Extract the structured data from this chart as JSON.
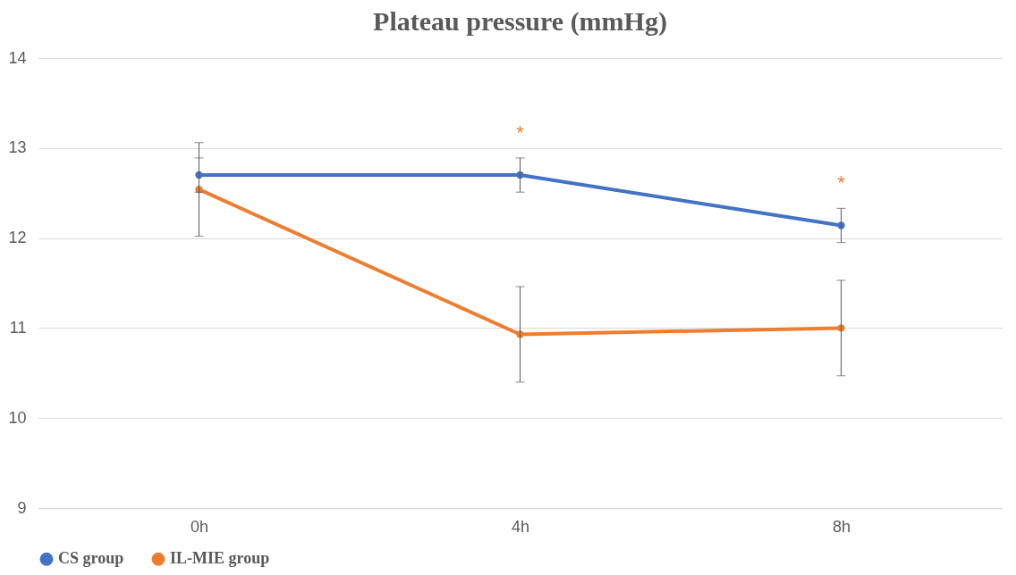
{
  "chart_data": {
    "type": "line",
    "title": "Plateau pressure (mmHg)",
    "categories": [
      "0h",
      "4h",
      "8h"
    ],
    "series": [
      {
        "name": "CS group",
        "color": "#4472c4",
        "values": [
          12.7,
          12.7,
          12.14
        ],
        "errors": [
          0.19,
          0.19,
          0.19
        ]
      },
      {
        "name": "IL-MIE group",
        "color": "#ed7d31",
        "values": [
          12.54,
          10.93,
          11.0
        ],
        "errors": [
          0.52,
          0.53,
          0.53
        ]
      }
    ],
    "ylim": [
      9,
      14
    ],
    "yticks": [
      9,
      10,
      11,
      12,
      13,
      14
    ],
    "grid": "y",
    "legend": "bottom",
    "marker": "circle",
    "line_style": "solid",
    "annotations": [
      "*",
      "*"
    ]
  }
}
